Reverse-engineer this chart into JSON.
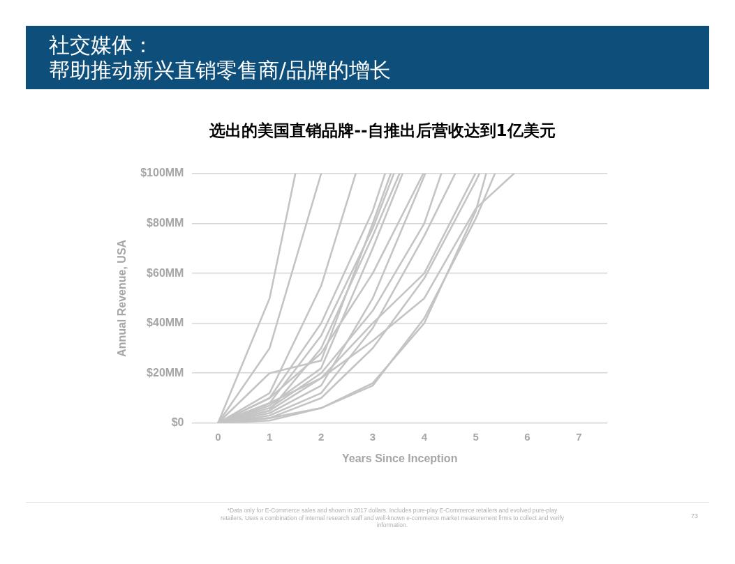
{
  "chart_data": {
    "type": "line",
    "title": "社交媒体：帮助推动新兴直销零售商/品牌的增长",
    "subtitle": "选出的美国直销品牌--自推出后营收达到1亿美元",
    "xlabel": "Years Since Inception",
    "ylabel": "Annual Revenue, USA",
    "xlim": [
      -0.5,
      7.55
    ],
    "xticks": [
      0,
      1,
      2,
      3,
      4,
      5,
      6,
      7
    ],
    "ylim": [
      0,
      100
    ],
    "yticks": [
      {
        "value": 0,
        "label": "$0"
      },
      {
        "value": 20,
        "label": "$20MM"
      },
      {
        "value": 40,
        "label": "$40MM"
      },
      {
        "value": 60,
        "label": "$60MM"
      },
      {
        "value": 80,
        "label": "$80MM"
      },
      {
        "value": 100,
        "label": "$100MM"
      }
    ],
    "grid": "y",
    "legend": false,
    "marker": "none",
    "annotations": [
      "*Data only for E-Commerce sales and shown in 2017 dollars. Includes pure-play E-Commerce retailers and evolved pure-play retailers. Uses a combination of internal research staff and well-known e-commerce market measurement firms to collect and verify information.",
      "73"
    ],
    "series": [
      {
        "color": "#c4c4c4",
        "x": [
          0,
          1,
          1.5
        ],
        "values": [
          0,
          50,
          100
        ]
      },
      {
        "color": "#c4c4c4",
        "x": [
          0,
          1,
          2
        ],
        "values": [
          0,
          30,
          100
        ]
      },
      {
        "color": "#c4c4c4",
        "x": [
          0,
          1,
          2,
          2.67
        ],
        "values": [
          0,
          12,
          55,
          100
        ]
      },
      {
        "color": "#c4c4c4",
        "x": [
          0,
          1,
          2,
          3,
          3.24
        ],
        "values": [
          0,
          10,
          40,
          85,
          100
        ]
      },
      {
        "color": "#c4c4c4",
        "x": [
          0,
          1,
          2,
          3,
          3.35
        ],
        "values": [
          0,
          20,
          25,
          80,
          100
        ]
      },
      {
        "color": "#c4c4c4",
        "x": [
          0,
          1,
          2,
          3,
          3.41
        ],
        "values": [
          0,
          8,
          35,
          78,
          100
        ]
      },
      {
        "color": "#c4c4c4",
        "x": [
          0,
          1,
          2,
          3,
          3.52
        ],
        "values": [
          0,
          5,
          30,
          75,
          100
        ]
      },
      {
        "color": "#c4c4c4",
        "x": [
          0,
          1,
          2,
          3,
          3.58
        ],
        "values": [
          0,
          7,
          22,
          70,
          100
        ]
      },
      {
        "color": "#c4c4c4",
        "x": [
          0,
          1,
          2,
          3,
          3.98
        ],
        "values": [
          0,
          10,
          28,
          60,
          100
        ]
      },
      {
        "color": "#c4c4c4",
        "x": [
          0,
          1,
          2,
          3,
          4.02
        ],
        "values": [
          0,
          4,
          15,
          50,
          100
        ]
      },
      {
        "color": "#c4c4c4",
        "x": [
          0,
          1,
          2,
          3,
          4,
          4.33
        ],
        "values": [
          0,
          6,
          20,
          45,
          80,
          100
        ]
      },
      {
        "color": "#c4c4c4",
        "x": [
          0,
          1,
          2,
          3,
          4,
          4.6
        ],
        "values": [
          0,
          3,
          12,
          38,
          75,
          100
        ]
      },
      {
        "color": "#c4c4c4",
        "x": [
          0,
          1,
          2,
          3,
          4,
          4.99
        ],
        "values": [
          0,
          5,
          18,
          40,
          60,
          100
        ]
      },
      {
        "color": "#c4c4c4",
        "x": [
          0,
          1,
          2,
          3,
          4,
          5,
          5.07
        ],
        "values": [
          0,
          2,
          10,
          30,
          58,
          97,
          100
        ]
      },
      {
        "color": "#c4c4c4",
        "x": [
          0,
          1,
          2,
          3,
          4,
          5,
          5.2
        ],
        "values": [
          0,
          2,
          6,
          16,
          40,
          85,
          100
        ]
      },
      {
        "color": "#c4c4c4",
        "x": [
          0,
          1,
          2,
          3,
          4,
          5,
          5.37
        ],
        "values": [
          0,
          1,
          6,
          15,
          42,
          82,
          100
        ]
      },
      {
        "color": "#c4c4c4",
        "x": [
          0,
          1,
          2,
          3,
          4,
          5,
          5.74
        ],
        "values": [
          0,
          8,
          18,
          33,
          50,
          86,
          100
        ]
      }
    ]
  }
}
